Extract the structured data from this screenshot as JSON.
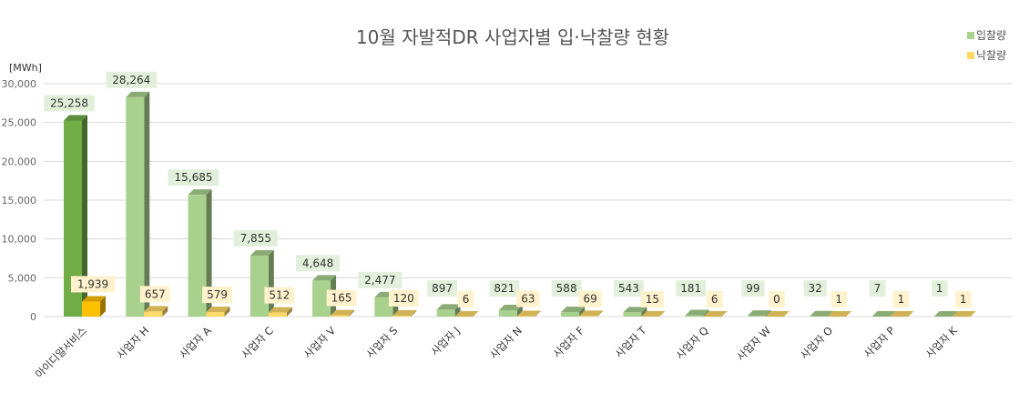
{
  "chart_data": {
    "type": "bar",
    "title": "10월 자발적DR 사업자별 입·낙찰량 현황",
    "ylabel": "[MWh]",
    "ylim": [
      0,
      30000
    ],
    "yticks": [
      "30,000",
      "25,000",
      "20,000",
      "15,000",
      "10,000",
      "5,000",
      "0"
    ],
    "ytick_values": [
      30000,
      25000,
      20000,
      15000,
      10000,
      5000,
      0
    ],
    "grid": true,
    "legend_position": "top-right",
    "categories": [
      "아이디알서비스",
      "사업자 H",
      "사업자 A",
      "사업자 C",
      "사업자 V",
      "사업자 S",
      "사업자 J",
      "사업자 N",
      "사업자 F",
      "사업자 T",
      "사업자 Q",
      "사업자 W",
      "사업자 O",
      "사업자 P",
      "사업자 K"
    ],
    "series": [
      {
        "name": "입찰량",
        "values": [
          25258,
          28264,
          15685,
          7855,
          4648,
          2477,
          897,
          821,
          588,
          543,
          181,
          99,
          32,
          7,
          1
        ],
        "labels": [
          "25,258",
          "28,264",
          "15,685",
          "7,855",
          "4,648",
          "2,477",
          "897",
          "821",
          "588",
          "543",
          "181",
          "99",
          "32",
          "7",
          "1"
        ],
        "color": "#a9d18e",
        "highlight_color": "#70ad47"
      },
      {
        "name": "낙찰량",
        "values": [
          1939,
          657,
          579,
          512,
          165,
          120,
          6,
          63,
          69,
          15,
          6,
          0,
          1,
          1,
          1
        ],
        "labels": [
          "1,939",
          "657",
          "579",
          "512",
          "165",
          "120",
          "6",
          "63",
          "69",
          "15",
          "6",
          "0",
          "1",
          "1",
          "1"
        ],
        "color": "#ffd966",
        "highlight_color": "#ffc000"
      }
    ]
  }
}
